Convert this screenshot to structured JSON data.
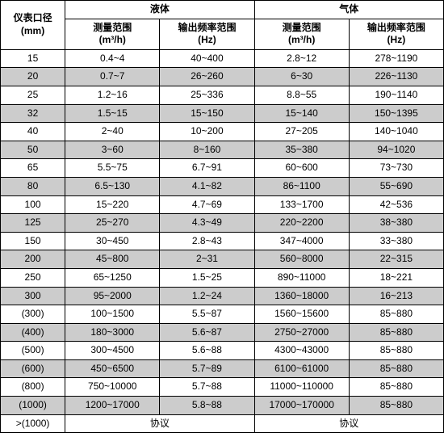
{
  "header": {
    "col0_line1": "仪表口径",
    "col0_line2": "(mm)",
    "group1": "液体",
    "group2": "气体",
    "sub1_line1": "测量范围",
    "sub1_line2": "(m³/h)",
    "sub2_line1": "输出频率范围",
    "sub2_line2": "(Hz)",
    "sub3_line1": "测量范围",
    "sub3_line2": "(m³/h)",
    "sub4_line1": "输出频率范围",
    "sub4_line2": "(Hz)"
  },
  "rows": [
    {
      "c0": "15",
      "c1": "0.4~4",
      "c2": "40~400",
      "c3": "2.8~12",
      "c4": "278~1190"
    },
    {
      "c0": "20",
      "c1": "0.7~7",
      "c2": "26~260",
      "c3": "6~30",
      "c4": "226~1130"
    },
    {
      "c0": "25",
      "c1": "1.2~16",
      "c2": "25~336",
      "c3": "8.8~55",
      "c4": "190~1140"
    },
    {
      "c0": "32",
      "c1": "1.5~15",
      "c2": "15~150",
      "c3": "15~140",
      "c4": "150~1395"
    },
    {
      "c0": "40",
      "c1": "2~40",
      "c2": "10~200",
      "c3": "27~205",
      "c4": "140~1040"
    },
    {
      "c0": "50",
      "c1": "3~60",
      "c2": "8~160",
      "c3": "35~380",
      "c4": "94~1020"
    },
    {
      "c0": "65",
      "c1": "5.5~75",
      "c2": "6.7~91",
      "c3": "60~600",
      "c4": "73~730"
    },
    {
      "c0": "80",
      "c1": "6.5~130",
      "c2": "4.1~82",
      "c3": "86~1100",
      "c4": "55~690"
    },
    {
      "c0": "100",
      "c1": "15~220",
      "c2": "4.7~69",
      "c3": "133~1700",
      "c4": "42~536"
    },
    {
      "c0": "125",
      "c1": "25~270",
      "c2": "4.3~49",
      "c3": "220~2200",
      "c4": "38~380"
    },
    {
      "c0": "150",
      "c1": "30~450",
      "c2": "2.8~43",
      "c3": "347~4000",
      "c4": "33~380"
    },
    {
      "c0": "200",
      "c1": "45~800",
      "c2": "2~31",
      "c3": "560~8000",
      "c4": "22~315"
    },
    {
      "c0": "250",
      "c1": "65~1250",
      "c2": "1.5~25",
      "c3": "890~11000",
      "c4": "18~221"
    },
    {
      "c0": "300",
      "c1": "95~2000",
      "c2": "1.2~24",
      "c3": "1360~18000",
      "c4": "16~213"
    },
    {
      "c0": "(300)",
      "c1": "100~1500",
      "c2": "5.5~87",
      "c3": "1560~15600",
      "c4": "85~880"
    },
    {
      "c0": "(400)",
      "c1": "180~3000",
      "c2": "5.6~87",
      "c3": "2750~27000",
      "c4": "85~880"
    },
    {
      "c0": "(500)",
      "c1": "300~4500",
      "c2": "5.6~88",
      "c3": "4300~43000",
      "c4": "85~880"
    },
    {
      "c0": "(600)",
      "c1": "450~6500",
      "c2": "5.7~89",
      "c3": "6100~61000",
      "c4": "85~880"
    },
    {
      "c0": "(800)",
      "c1": "750~10000",
      "c2": "5.7~88",
      "c3": "11000~110000",
      "c4": "85~880"
    },
    {
      "c0": "(1000)",
      "c1": "1200~17000",
      "c2": "5.8~88",
      "c3": "17000~170000",
      "c4": "85~880"
    }
  ],
  "footer": {
    "c0": ">(1000)",
    "liquid": "协议",
    "gas": "协议"
  },
  "colors": {
    "even_bg": "#ffffff",
    "odd_bg": "#cccccc",
    "border": "#000000"
  },
  "fontsize": 12
}
